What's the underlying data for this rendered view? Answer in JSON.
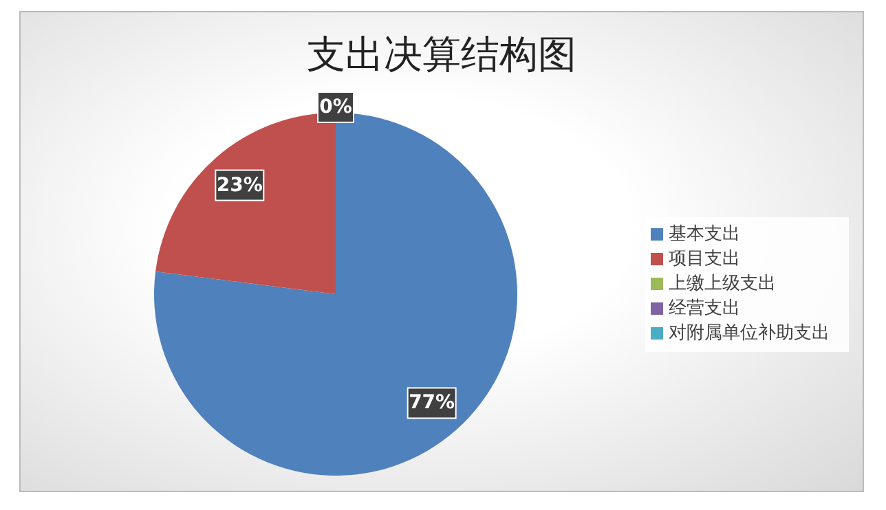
{
  "chart_data": {
    "type": "pie",
    "title": "支出决算结构图",
    "categories": [
      "基本支出",
      "项目支出",
      "上缴上级支出",
      "经营支出",
      "对附属单位补助支出"
    ],
    "values": [
      77,
      23,
      0,
      0,
      0
    ],
    "colors": [
      "#4f81bd",
      "#c0504d",
      "#9bbb59",
      "#8064a2",
      "#4bacc6"
    ],
    "value_labels": [
      "77%",
      "23%",
      "0%",
      null,
      null
    ],
    "legend": "right"
  }
}
